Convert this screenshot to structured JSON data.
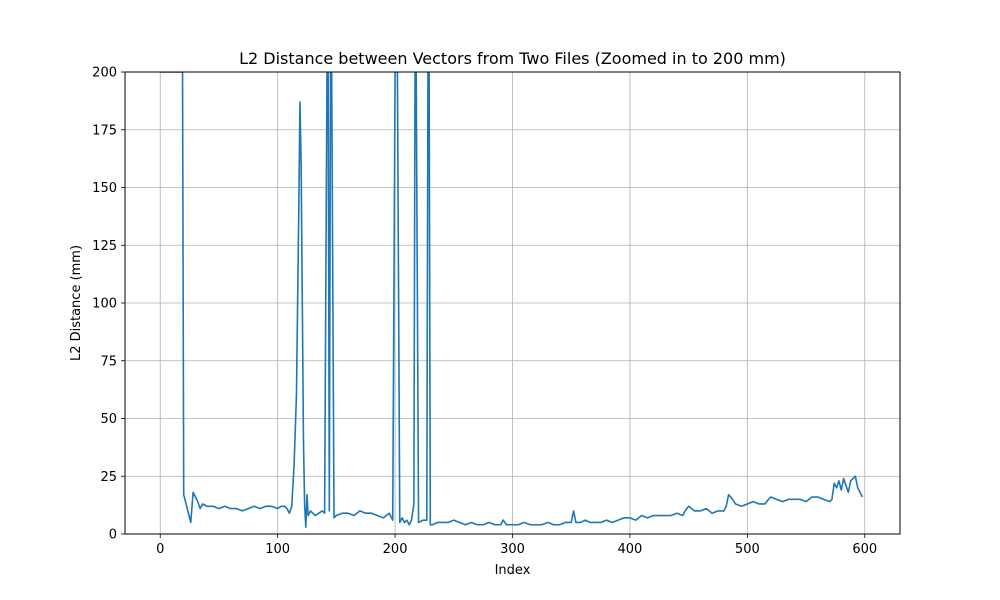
{
  "chart_data": {
    "type": "line",
    "title": "L2 Distance between Vectors from Two Files (Zoomed in to 200 mm)",
    "xlabel": "Index",
    "ylabel": "L2 Distance (mm)",
    "xlim": [
      -30,
      630
    ],
    "ylim": [
      0,
      200
    ],
    "xticks": [
      0,
      100,
      200,
      300,
      400,
      500,
      600
    ],
    "yticks": [
      0,
      25,
      50,
      75,
      100,
      125,
      150,
      175,
      200
    ],
    "grid": true,
    "line_color": "#1f77b4",
    "series": [
      {
        "x": [
          0,
          18,
          19,
          20,
          22,
          24,
          26,
          28,
          30,
          32,
          34,
          36,
          40,
          45,
          50,
          55,
          60,
          65,
          70,
          75,
          80,
          85,
          90,
          95,
          100,
          103,
          106,
          108,
          110,
          112,
          114,
          116,
          117,
          118,
          119,
          120,
          121,
          122,
          123,
          124,
          125,
          126,
          128,
          130,
          132,
          135,
          138,
          140,
          142,
          143,
          144,
          145,
          146,
          148,
          150,
          155,
          160,
          165,
          170,
          175,
          180,
          185,
          190,
          195,
          198,
          200,
          202,
          204,
          206,
          208,
          210,
          212,
          214,
          216,
          217,
          218,
          220,
          224,
          227,
          228,
          229,
          230,
          232,
          236,
          240,
          245,
          250,
          255,
          260,
          265,
          270,
          275,
          280,
          285,
          290,
          292,
          295,
          300,
          305,
          310,
          315,
          320,
          325,
          330,
          335,
          340,
          345,
          350,
          352,
          354,
          358,
          362,
          366,
          370,
          375,
          380,
          385,
          390,
          395,
          400,
          405,
          410,
          415,
          420,
          425,
          430,
          435,
          440,
          445,
          447,
          450,
          455,
          460,
          465,
          470,
          475,
          480,
          482,
          484,
          486,
          490,
          495,
          500,
          505,
          510,
          515,
          518,
          520,
          525,
          530,
          535,
          540,
          545,
          550,
          555,
          560,
          565,
          570,
          572,
          574,
          576,
          578,
          580,
          582,
          584,
          586,
          588,
          590,
          592,
          594,
          596,
          598
        ],
        "y": [
          200,
          200,
          200,
          17,
          13,
          9,
          5,
          18,
          16,
          14,
          11,
          13,
          12,
          12,
          11,
          12,
          11,
          11,
          10,
          11,
          12,
          11,
          12,
          12,
          11,
          12,
          12,
          11,
          9,
          12,
          30,
          60,
          100,
          140,
          187,
          160,
          100,
          40,
          12,
          3,
          17,
          8,
          10,
          9,
          8,
          9,
          10,
          9,
          200,
          200,
          10,
          200,
          200,
          7,
          8,
          9,
          9,
          8,
          10,
          9,
          9,
          8,
          7,
          9,
          6,
          200,
          200,
          5,
          7,
          5,
          6,
          4,
          6,
          13,
          200,
          200,
          5,
          6,
          6,
          200,
          200,
          4,
          4,
          5,
          5,
          5,
          6,
          5,
          4,
          5,
          4,
          4,
          5,
          4,
          4,
          6,
          4,
          4,
          4,
          5,
          4,
          4,
          4,
          5,
          4,
          4,
          5,
          5,
          10,
          5,
          5,
          6,
          5,
          5,
          5,
          6,
          5,
          6,
          7,
          7,
          6,
          8,
          7,
          8,
          8,
          8,
          8,
          9,
          8,
          10,
          12,
          10,
          10,
          11,
          9,
          10,
          10,
          12,
          17,
          16,
          13,
          12,
          13,
          14,
          13,
          13,
          15,
          16,
          15,
          14,
          15,
          15,
          15,
          14,
          16,
          16,
          15,
          14,
          15,
          22,
          20,
          23,
          19,
          24,
          21,
          18,
          23,
          24,
          25,
          20,
          18,
          16
        ]
      }
    ]
  }
}
